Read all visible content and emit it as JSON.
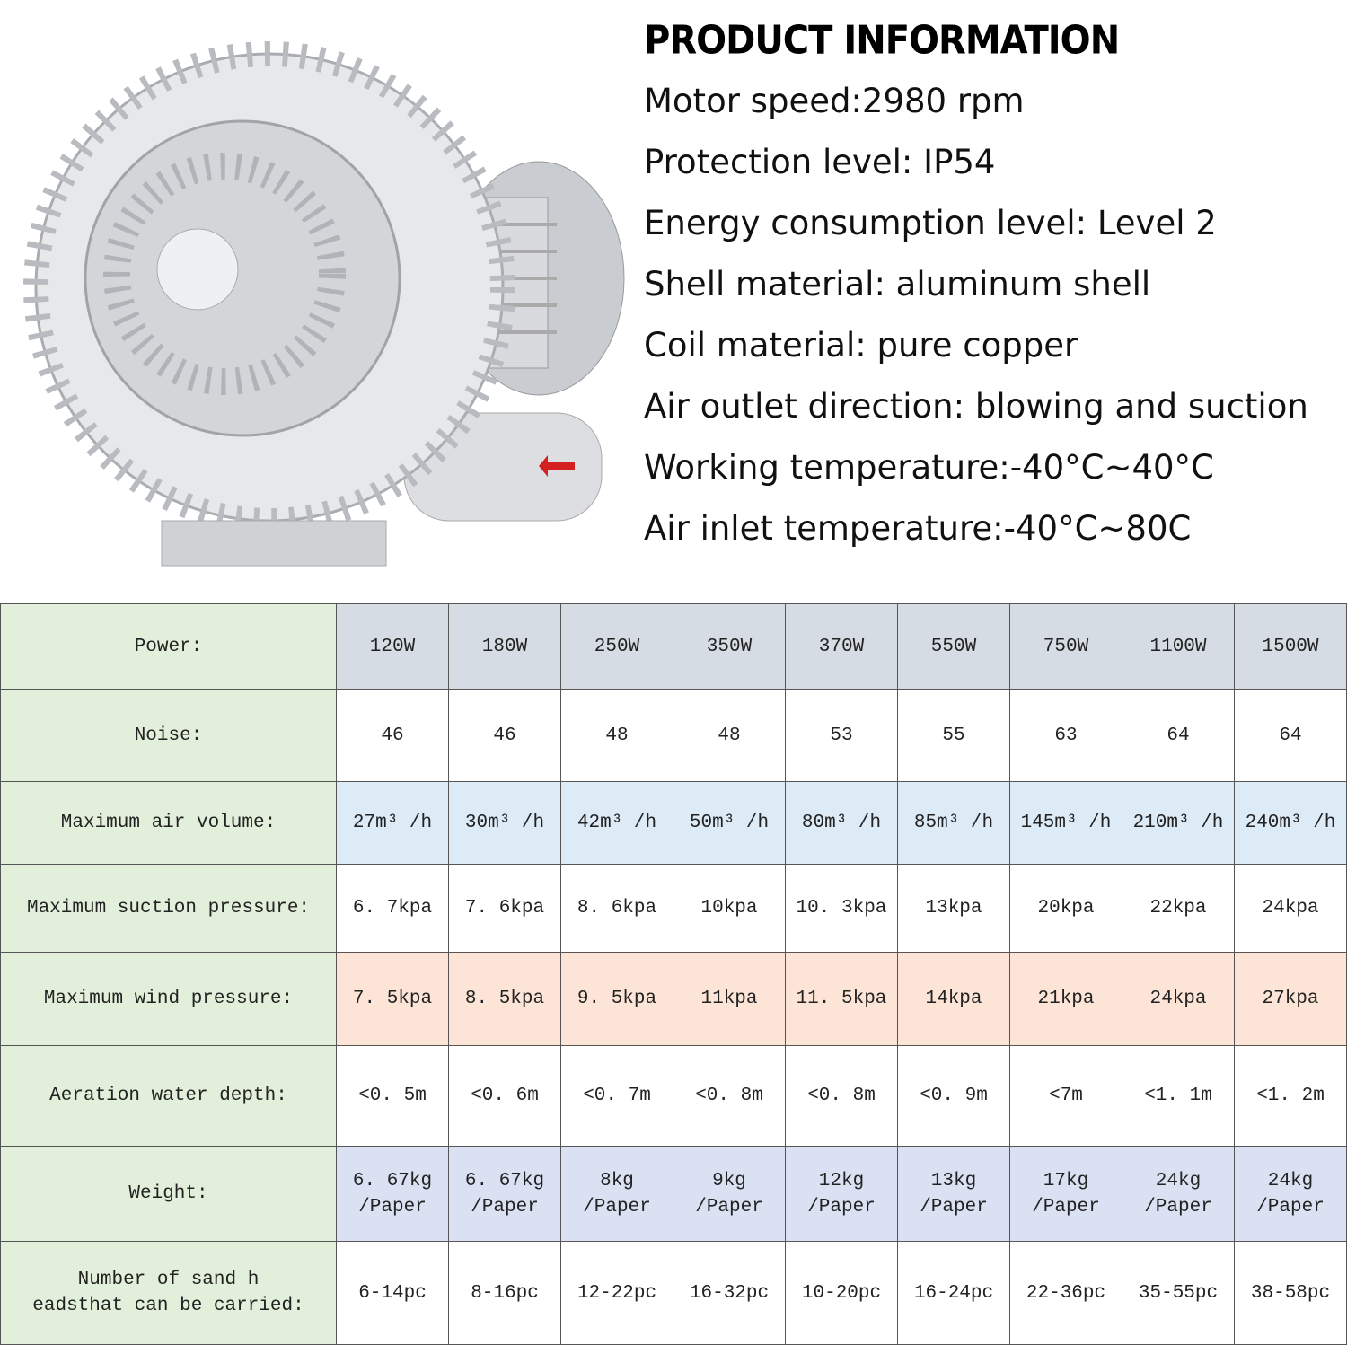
{
  "header": {
    "title": "PRODUCT INFORMATION"
  },
  "specs": [
    "Motor speed:2980 rpm",
    "Protection level: IP54",
    "Energy consumption level: Level 2",
    "Shell material: aluminum shell",
    "Coil material: pure copper",
    "Air outlet direction: blowing and suction",
    "Working temperature:-40°C~40°C",
    "Air inlet temperature:-40°C~80C"
  ],
  "table": {
    "rows": [
      [
        "Power:",
        "120W",
        "180W",
        "250W",
        "350W",
        "370W",
        "550W",
        "750W",
        "1100W",
        "1500W"
      ],
      [
        "Noise:",
        "46",
        "46",
        "48",
        "48",
        "53",
        "55",
        "63",
        "64",
        "64"
      ],
      [
        "Maximum air volume:",
        "27m³ /h",
        "30m³ /h",
        "42m³ /h",
        "50m³ /h",
        "80m³ /h",
        "85m³ /h",
        "145m³ /h",
        "210m³ /h",
        "240m³ /h"
      ],
      [
        "Maximum suction pressure:",
        "6. 7kpa",
        "7. 6kpa",
        "8. 6kpa",
        "10kpa",
        "10. 3kpa",
        "13kpa",
        "20kpa",
        "22kpa",
        "24kpa"
      ],
      [
        "Maximum wind pressure:",
        "7. 5kpa",
        "8. 5kpa",
        "9. 5kpa",
        "11kpa",
        "11. 5kpa",
        "14kpa",
        "21kpa",
        "24kpa",
        "27kpa"
      ],
      [
        "Aeration water depth:",
        "<0. 5m",
        "<0. 6m",
        "<0. 7m",
        "<0. 8m",
        "<0. 8m",
        "<0. 9m",
        "<7m",
        "<1. 1m",
        "<1. 2m"
      ],
      [
        "Weight:",
        "6. 67kg\n/Paper",
        "6. 67kg\n/Paper",
        "8kg\n/Paper",
        "9kg\n/Paper",
        "12kg\n/Paper",
        "13kg\n/Paper",
        "17kg\n/Paper",
        "24kg\n/Paper",
        "24kg\n/Paper"
      ],
      [
        "Number of sand h\neadsthat can be carried:",
        "6-14pc",
        "8-16pc",
        "12-22pc",
        "16-32pc",
        "10-20pc",
        "16-24pc",
        "22-36pc",
        "35-55pc",
        "38-58pc"
      ]
    ]
  }
}
